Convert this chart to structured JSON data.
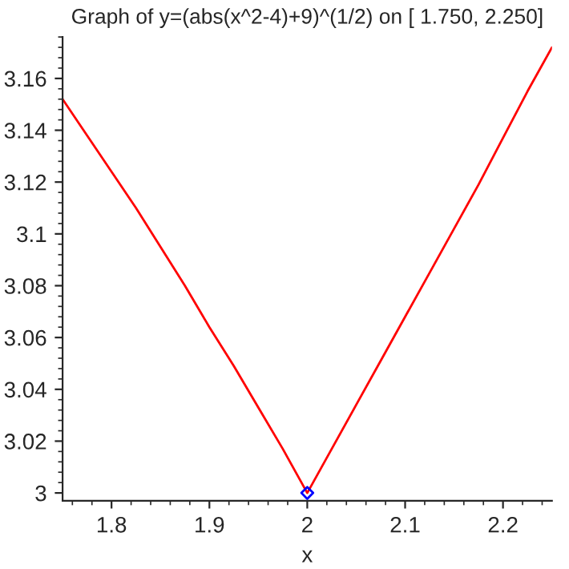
{
  "chart_data": {
    "type": "line",
    "title": "Graph of y=(abs(x^2-4)+9)^(1/2) on [ 1.750, 2.250]",
    "xlabel": "x",
    "series": [
      {
        "color": "#ff0000",
        "x": [
          1.75,
          1.775,
          1.8,
          1.825,
          1.85,
          1.875,
          1.9,
          1.925,
          1.95,
          1.975,
          2.0,
          2.025,
          2.05,
          2.075,
          2.1,
          2.125,
          2.15,
          2.175,
          2.2,
          2.225,
          2.25
        ],
        "values": [
          3.152,
          3.138,
          3.124,
          3.11,
          3.095,
          3.08,
          3.064,
          3.049,
          3.033,
          3.017,
          3.0,
          3.017,
          3.034,
          3.051,
          3.068,
          3.085,
          3.102,
          3.119,
          3.137,
          3.155,
          3.172
        ]
      },
      {
        "type": "scatter",
        "color": "#0000ff",
        "marker": "diamond",
        "x": [
          2.0
        ],
        "values": [
          3.0
        ]
      }
    ],
    "xlim": [
      1.75,
      2.25
    ],
    "ylim": [
      2.997,
      3.176
    ],
    "xticks": [
      1.8,
      1.9,
      2,
      2.1,
      2.2
    ],
    "yticks": [
      3,
      3.02,
      3.04,
      3.06,
      3.08,
      3.1,
      3.12,
      3.14,
      3.16
    ],
    "grid": false,
    "legend": false
  }
}
